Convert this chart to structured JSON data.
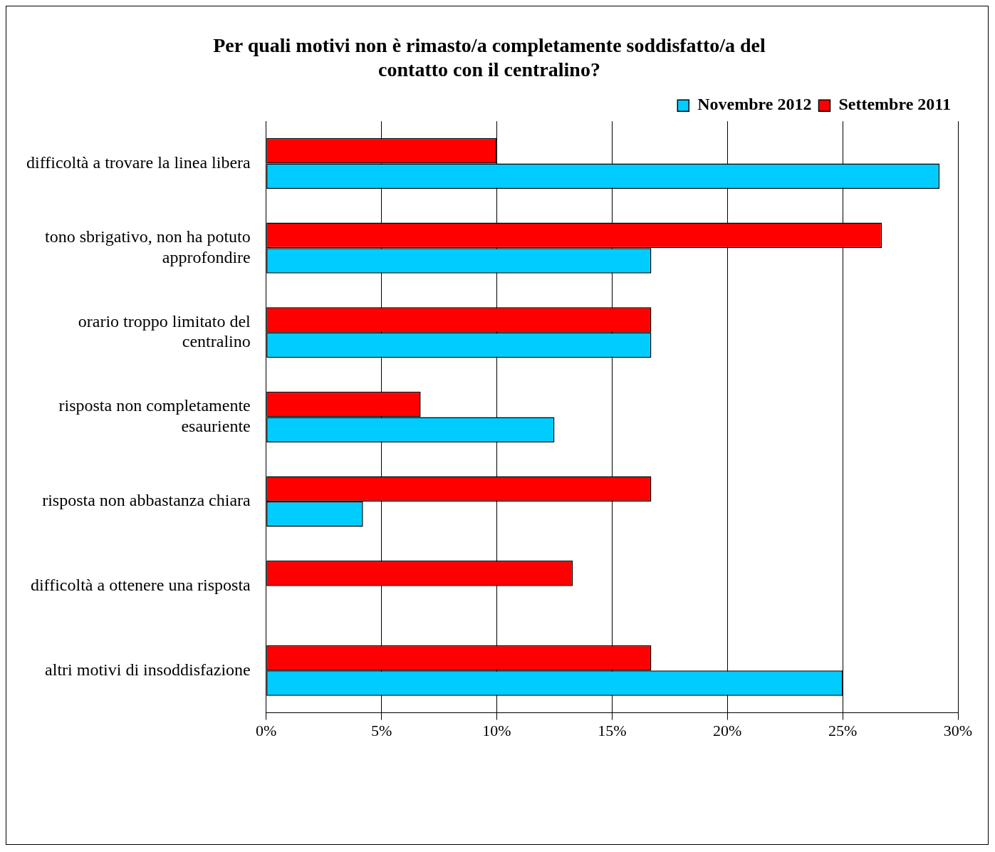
{
  "chart_data": {
    "type": "bar",
    "orientation": "horizontal",
    "title": "Per quali motivi non è rimasto/a completamente soddisfatto/a del contatto con il centralino?",
    "categories": [
      "difficoltà a trovare la linea libera",
      "tono sbrigativo, non ha potuto approfondire",
      "orario troppo limitato del centralino",
      "risposta non completamente esauriente",
      "risposta non abbastanza chiara",
      "difficoltà a ottenere una risposta",
      "altri motivi di insoddisfazione"
    ],
    "series": [
      {
        "name": "Novembre 2012",
        "color": "#00ccff",
        "values": [
          29.2,
          16.7,
          16.7,
          12.5,
          4.2,
          0,
          25.0
        ]
      },
      {
        "name": "Settembre 2011",
        "color": "#ff0000",
        "values": [
          10.0,
          26.7,
          16.7,
          6.7,
          16.7,
          13.3,
          16.7
        ]
      }
    ],
    "xlim": [
      0,
      30
    ],
    "xticks": [
      {
        "value": 0,
        "label": "0%"
      },
      {
        "value": 5,
        "label": "5%"
      },
      {
        "value": 10,
        "label": "10%"
      },
      {
        "value": 15,
        "label": "15%"
      },
      {
        "value": 20,
        "label": "20%"
      },
      {
        "value": 25,
        "label": "25%"
      },
      {
        "value": 30,
        "label": "30%"
      }
    ],
    "grid": "x",
    "legend": "top right"
  }
}
